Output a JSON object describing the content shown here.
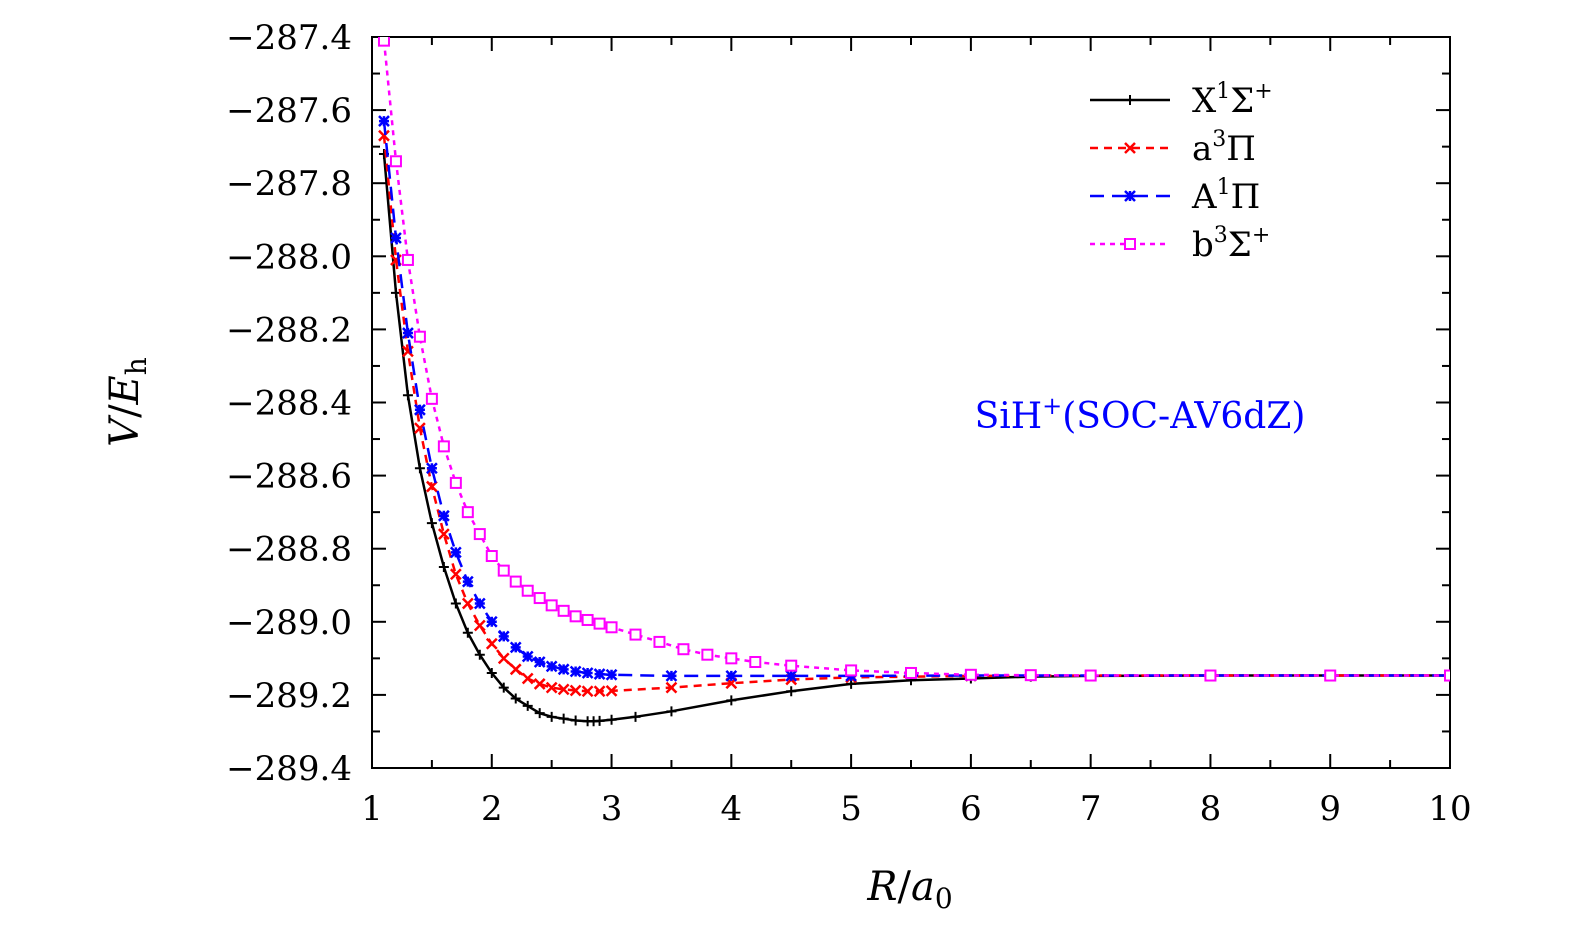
{
  "chart_data": {
    "type": "line",
    "xlabel": "R/a0",
    "xlabel_main": "R",
    "xlabel_sub": "0",
    "xlabel_mid": "/a",
    "ylabel_main": "V/E",
    "ylabel_sub": "h",
    "xlim": [
      1,
      10
    ],
    "ylim": [
      -289.4,
      -287.4
    ],
    "xticks": [
      1,
      2,
      3,
      4,
      5,
      6,
      7,
      8,
      9,
      10
    ],
    "yticks": [
      -287.4,
      -287.6,
      -287.8,
      -288.0,
      -288.2,
      -288.4,
      -288.6,
      -288.8,
      -289.0,
      -289.2,
      -289.4
    ],
    "ytick_labels": [
      "−287.4",
      "−287.6",
      "−287.8",
      "−288.0",
      "−288.2",
      "−288.4",
      "−288.6",
      "−288.8",
      "−289.0",
      "−289.2",
      "−289.4"
    ],
    "annotation": {
      "prefix": "SiH",
      "sup": "+",
      "suffix": "(SOC-AV6dZ)",
      "color": "#0000ff"
    },
    "grid": false,
    "legend_position": "top-right",
    "series": [
      {
        "name": "X1Σ+",
        "label_base": "X",
        "label_sup": "1",
        "label_sym": "Σ",
        "label_sup2": "+",
        "color": "#000000",
        "dash": "solid",
        "marker": "plus",
        "x": [
          1.1,
          1.2,
          1.3,
          1.4,
          1.5,
          1.6,
          1.7,
          1.8,
          1.9,
          2.0,
          2.1,
          2.2,
          2.3,
          2.4,
          2.5,
          2.6,
          2.7,
          2.8,
          2.85,
          2.9,
          3.0,
          3.2,
          3.5,
          4.0,
          4.5,
          5.0,
          5.5,
          6.0,
          6.5,
          7.0,
          8.0,
          9.0,
          10.0
        ],
        "y": [
          -287.72,
          -288.1,
          -288.38,
          -288.58,
          -288.73,
          -288.85,
          -288.95,
          -289.03,
          -289.09,
          -289.14,
          -289.18,
          -289.21,
          -289.23,
          -289.25,
          -289.26,
          -289.265,
          -289.27,
          -289.272,
          -289.272,
          -289.271,
          -289.268,
          -289.26,
          -289.245,
          -289.215,
          -289.19,
          -289.17,
          -289.16,
          -289.155,
          -289.15,
          -289.148,
          -289.147,
          -289.147,
          -289.147
        ]
      },
      {
        "name": "a3Π",
        "label_base": "a",
        "label_sup": "3",
        "label_sym": "Π",
        "label_sup2": "",
        "color": "#ff0000",
        "dash": "8,6",
        "marker": "x",
        "x": [
          1.1,
          1.2,
          1.3,
          1.4,
          1.5,
          1.6,
          1.7,
          1.8,
          1.9,
          2.0,
          2.1,
          2.2,
          2.3,
          2.4,
          2.5,
          2.6,
          2.7,
          2.8,
          2.9,
          3.0,
          3.5,
          4.0,
          4.5,
          5.0,
          6.0,
          7.0,
          8.0,
          9.0,
          10.0
        ],
        "y": [
          -287.67,
          -288.01,
          -288.26,
          -288.47,
          -288.63,
          -288.76,
          -288.87,
          -288.95,
          -289.01,
          -289.06,
          -289.1,
          -289.13,
          -289.155,
          -289.17,
          -289.18,
          -289.185,
          -289.188,
          -289.19,
          -289.19,
          -289.189,
          -289.18,
          -289.168,
          -289.158,
          -289.152,
          -289.148,
          -289.147,
          -289.147,
          -289.147,
          -289.147
        ]
      },
      {
        "name": "A1Π",
        "label_base": "A",
        "label_sup": "1",
        "label_sym": "Π",
        "label_sup2": "",
        "color": "#0000ff",
        "dash": "14,8",
        "marker": "asterisk",
        "x": [
          1.1,
          1.2,
          1.3,
          1.4,
          1.5,
          1.6,
          1.7,
          1.8,
          1.9,
          2.0,
          2.1,
          2.2,
          2.3,
          2.4,
          2.5,
          2.6,
          2.7,
          2.8,
          2.9,
          3.0,
          3.5,
          4.0,
          4.5,
          5.0,
          6.0,
          7.0,
          8.0,
          9.0,
          10.0
        ],
        "y": [
          -287.63,
          -287.95,
          -288.21,
          -288.42,
          -288.58,
          -288.71,
          -288.81,
          -288.89,
          -288.95,
          -289.0,
          -289.04,
          -289.07,
          -289.095,
          -289.11,
          -289.122,
          -289.13,
          -289.136,
          -289.14,
          -289.143,
          -289.145,
          -289.148,
          -289.148,
          -289.148,
          -289.148,
          -289.147,
          -289.147,
          -289.147,
          -289.147,
          -289.147
        ]
      },
      {
        "name": "b3Σ+",
        "label_base": "b",
        "label_sup": "3",
        "label_sym": "Σ",
        "label_sup2": "+",
        "color": "#ff00ff",
        "dash": "5,5",
        "marker": "square",
        "x": [
          1.1,
          1.2,
          1.3,
          1.4,
          1.5,
          1.6,
          1.7,
          1.8,
          1.9,
          2.0,
          2.1,
          2.2,
          2.3,
          2.4,
          2.5,
          2.6,
          2.7,
          2.8,
          2.9,
          3.0,
          3.2,
          3.4,
          3.6,
          3.8,
          4.0,
          4.2,
          4.5,
          5.0,
          5.5,
          6.0,
          6.5,
          7.0,
          8.0,
          9.0,
          10.0
        ],
        "y": [
          -287.41,
          -287.74,
          -288.01,
          -288.22,
          -288.39,
          -288.52,
          -288.62,
          -288.7,
          -288.76,
          -288.82,
          -288.86,
          -288.89,
          -288.915,
          -288.935,
          -288.955,
          -288.97,
          -288.985,
          -288.995,
          -289.005,
          -289.015,
          -289.035,
          -289.055,
          -289.075,
          -289.09,
          -289.1,
          -289.11,
          -289.12,
          -289.133,
          -289.14,
          -289.145,
          -289.146,
          -289.147,
          -289.147,
          -289.147,
          -289.147
        ]
      }
    ]
  }
}
